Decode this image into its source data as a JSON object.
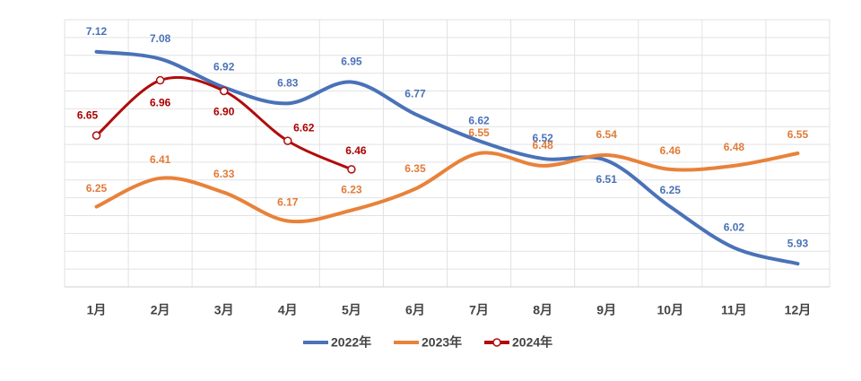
{
  "chart_data": {
    "type": "line",
    "categories": [
      "1月",
      "2月",
      "3月",
      "4月",
      "5月",
      "6月",
      "7月",
      "8月",
      "9月",
      "10月",
      "11月",
      "12月"
    ],
    "series": [
      {
        "name": "2022年",
        "color": "#4a72b8",
        "values": [
          7.12,
          7.08,
          6.92,
          6.83,
          6.95,
          6.77,
          6.62,
          6.52,
          6.51,
          6.25,
          6.02,
          5.93
        ]
      },
      {
        "name": "2023年",
        "color": "#e8823a",
        "values": [
          6.25,
          6.41,
          6.33,
          6.17,
          6.23,
          6.35,
          6.55,
          6.48,
          6.54,
          6.46,
          6.48,
          6.55
        ]
      },
      {
        "name": "2024年",
        "color": "#b00c0c",
        "values": [
          6.65,
          6.96,
          6.9,
          6.62,
          6.46,
          null,
          null,
          null,
          null,
          null,
          null,
          null
        ]
      }
    ],
    "ylim": [
      5.8,
      7.3
    ],
    "yticks": [
      5.8,
      5.9,
      6.0,
      6.1,
      6.2,
      6.3,
      6.4,
      6.5,
      6.6,
      6.7,
      6.8,
      6.9,
      7.0,
      7.1,
      7.2,
      7.3
    ],
    "grid": true,
    "legend": "bottom"
  }
}
